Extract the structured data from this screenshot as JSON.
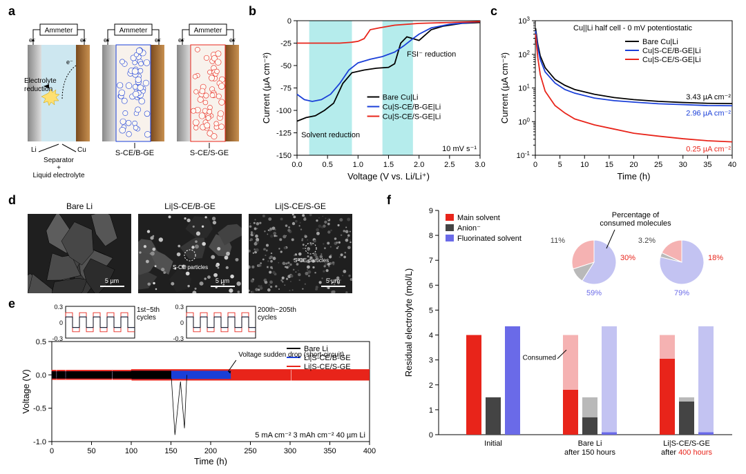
{
  "panels": {
    "a": "a",
    "b": "b",
    "c": "c",
    "d": "d",
    "e": "e",
    "f": "f"
  },
  "colors": {
    "bare": "#000000",
    "bge": "#1a3fd8",
    "sge": "#e8241a",
    "li": "#bbbbbb",
    "cu": "#a06830",
    "sep": "#cde7f0",
    "cyan_band": "#b5ecec",
    "anion": "#444444",
    "fluor": "#6a6ae8",
    "faded_red": "#f5b2b2",
    "faded_gray": "#b9b9b9",
    "faded_blue": "#c3c3f2"
  },
  "panelA": {
    "ammeter": "Ammeter",
    "e_minus": "e⁻",
    "labels": {
      "electrolyte_reduction": "Electrolyte\nreduction",
      "li": "Li",
      "cu": "Cu",
      "sep": "Separator\n+\nLiquid electrolyte",
      "bge": "S-CE/B-GE",
      "sge": "S-CE/S-GE"
    }
  },
  "panelB": {
    "xlabel": "Voltage (V vs. Li/Li⁺)",
    "ylabel": "Current (µA cm⁻²)",
    "xlim": [
      0,
      3
    ],
    "ylim": [
      -150,
      0
    ],
    "xticks": [
      0.0,
      0.5,
      1.0,
      1.5,
      2.0,
      2.5,
      3.0
    ],
    "yticks": [
      0,
      -25,
      -50,
      -75,
      -100,
      -125,
      -150
    ],
    "scan_rate": "10 mV s⁻¹",
    "anno_solvent": "Solvent reduction",
    "anno_fsi": "FSI⁻ reduction",
    "band1": [
      0.2,
      0.9
    ],
    "band2": [
      1.4,
      1.9
    ],
    "legend": {
      "bare": "Bare Cu|Li",
      "bge": "Cu|S-CE/B-GE|Li",
      "sge": "Cu|S-CE/S-GE|Li"
    },
    "series": {
      "bare": [
        [
          3.0,
          -2
        ],
        [
          2.7,
          -3
        ],
        [
          2.4,
          -6
        ],
        [
          2.2,
          -10
        ],
        [
          2.0,
          -22
        ],
        [
          1.9,
          -20
        ],
        [
          1.8,
          -18
        ],
        [
          1.7,
          -25
        ],
        [
          1.6,
          -48
        ],
        [
          1.5,
          -52
        ],
        [
          1.3,
          -53
        ],
        [
          1.1,
          -55
        ],
        [
          0.9,
          -58
        ],
        [
          0.75,
          -70
        ],
        [
          0.6,
          -92
        ],
        [
          0.45,
          -100
        ],
        [
          0.3,
          -106
        ],
        [
          0.15,
          -108
        ],
        [
          0.0,
          -112
        ]
      ],
      "bge": [
        [
          3.0,
          -1
        ],
        [
          2.5,
          -4
        ],
        [
          2.2,
          -8
        ],
        [
          2.0,
          -15
        ],
        [
          1.9,
          -20
        ],
        [
          1.75,
          -28
        ],
        [
          1.6,
          -35
        ],
        [
          1.4,
          -40
        ],
        [
          1.2,
          -43
        ],
        [
          1.0,
          -47
        ],
        [
          0.85,
          -55
        ],
        [
          0.7,
          -70
        ],
        [
          0.55,
          -82
        ],
        [
          0.4,
          -88
        ],
        [
          0.25,
          -90
        ],
        [
          0.12,
          -88
        ],
        [
          0.0,
          -82
        ]
      ],
      "sge": [
        [
          3.0,
          -1
        ],
        [
          2.5,
          -2
        ],
        [
          2.0,
          -3
        ],
        [
          1.6,
          -5
        ],
        [
          1.35,
          -8
        ],
        [
          1.2,
          -10
        ],
        [
          1.1,
          -20
        ],
        [
          1.0,
          -23
        ],
        [
          0.9,
          -24
        ],
        [
          0.7,
          -25
        ],
        [
          0.5,
          -25
        ],
        [
          0.3,
          -25
        ],
        [
          0.1,
          -25
        ],
        [
          0.0,
          -25
        ]
      ]
    }
  },
  "panelC": {
    "xlabel": "Time (h)",
    "ylabel": "Current (µA cm⁻²)",
    "xlim": [
      0,
      40
    ],
    "ylim_exp": [
      -1,
      3
    ],
    "xticks": [
      0,
      5,
      10,
      15,
      20,
      25,
      30,
      35,
      40
    ],
    "yticks_exp": [
      -1,
      0,
      1,
      2,
      3
    ],
    "title": "Cu||Li half cell - 0 mV potentiostatic",
    "legend": {
      "bare": "Bare Cu|Li",
      "bge": "Cu|S-CE/B-GE|Li",
      "sge": "Cu|S-CE/S-GE|Li"
    },
    "end_labels": {
      "bare": "3.43 µA cm⁻²",
      "bge": "2.96 µA cm⁻²",
      "sge": "0.25 µA cm⁻²"
    },
    "series": {
      "bare": [
        [
          0.05,
          600
        ],
        [
          0.5,
          200
        ],
        [
          1,
          90
        ],
        [
          2,
          40
        ],
        [
          4,
          18
        ],
        [
          6,
          12
        ],
        [
          8,
          9
        ],
        [
          12,
          6.5
        ],
        [
          16,
          5.2
        ],
        [
          20,
          4.5
        ],
        [
          25,
          4.0
        ],
        [
          30,
          3.7
        ],
        [
          35,
          3.5
        ],
        [
          40,
          3.43
        ]
      ],
      "bge": [
        [
          0.05,
          500
        ],
        [
          0.5,
          160
        ],
        [
          1,
          70
        ],
        [
          2,
          30
        ],
        [
          4,
          14
        ],
        [
          6,
          9
        ],
        [
          8,
          7
        ],
        [
          12,
          5.0
        ],
        [
          16,
          4.2
        ],
        [
          20,
          3.8
        ],
        [
          25,
          3.4
        ],
        [
          30,
          3.2
        ],
        [
          35,
          3.0
        ],
        [
          40,
          2.96
        ]
      ],
      "sge": [
        [
          0.05,
          400
        ],
        [
          0.5,
          80
        ],
        [
          1,
          25
        ],
        [
          2,
          8
        ],
        [
          4,
          3
        ],
        [
          6,
          1.8
        ],
        [
          8,
          1.2
        ],
        [
          12,
          0.8
        ],
        [
          16,
          0.6
        ],
        [
          20,
          0.45
        ],
        [
          25,
          0.37
        ],
        [
          30,
          0.31
        ],
        [
          35,
          0.27
        ],
        [
          40,
          0.25
        ]
      ]
    }
  },
  "panelD": {
    "labels": [
      "Bare Li",
      "Li|S-CE/B-GE",
      "Li|S-CE/S-GE"
    ],
    "scale": "5 µm",
    "particle_label": "S-CE particles"
  },
  "panelE": {
    "xlabel": "Time (h)",
    "ylabel": "Voltage (V)",
    "xlim": [
      0,
      400
    ],
    "ylim": [
      -1.0,
      0.5
    ],
    "xticks": [
      0,
      50,
      100,
      150,
      200,
      250,
      300,
      350,
      400
    ],
    "yticks": [
      -1.0,
      -0.5,
      0.0,
      0.5
    ],
    "legend": {
      "bare": "Bare Li",
      "bge": "Li|S-CE/B-GE",
      "sge": "Li|S-CE/S-GE"
    },
    "conditions": "5 mA cm⁻² 3 mAh cm⁻² 40 µm Li",
    "anno_drop": "Voltage sudden drop (short-circuit)",
    "inset1_label": "1st~5th\ncycles",
    "inset2_label": "200th~205th\ncycles",
    "inset_ylim": [
      -0.3,
      0.3
    ]
  },
  "panelF": {
    "ylabel": "Residual electrolyte (mol/L)",
    "ylim": [
      0,
      9
    ],
    "yticks": [
      0,
      1,
      2,
      3,
      4,
      5,
      6,
      7,
      8,
      9
    ],
    "categories": [
      "Initial",
      "Bare Li\nafter 150 hours",
      "Li|S-CE/S-GE\nafter 400 hours"
    ],
    "legend": {
      "main": "Main solvent",
      "anion": "Anion⁻",
      "fluor": "Fluorinated solvent"
    },
    "pie_label": "Percentage of\nconsumed molecules",
    "consumed": "Consumed",
    "after400_emphasis": "400 hours",
    "pie1": {
      "main": 30,
      "anion": 11,
      "fluor": 59
    },
    "pie2": {
      "main": 18,
      "anion": 3.2,
      "fluor": 78.8,
      "fluor_label": "79%"
    },
    "bars": {
      "initial": {
        "main": 4.0,
        "anion": 1.5,
        "fluor": 4.35
      },
      "bare150": {
        "main": 1.8,
        "main_consumed": 2.2,
        "anion": 0.7,
        "anion_consumed": 0.8,
        "fluor": 0.1,
        "fluor_consumed": 4.25
      },
      "sge400": {
        "main": 3.05,
        "main_consumed": 0.95,
        "anion": 1.33,
        "anion_consumed": 0.17,
        "fluor": 0.1,
        "fluor_consumed": 4.25
      }
    }
  }
}
